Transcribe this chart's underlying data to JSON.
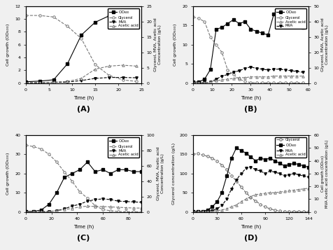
{
  "A": {
    "title": "(A)",
    "time": [
      0,
      3,
      6,
      9,
      12,
      15,
      18,
      21,
      24
    ],
    "OD": [
      0.2,
      0.3,
      0.5,
      3.0,
      7.5,
      9.5,
      10.5,
      10.2,
      9.5
    ],
    "Glycerol": [
      22,
      22,
      21.5,
      18.5,
      14.5,
      6.0,
      2.5,
      1.0,
      0.5
    ],
    "MVA": [
      0.1,
      0.1,
      0.2,
      0.3,
      0.8,
      1.5,
      1.8,
      1.8,
      1.7
    ],
    "AceticAcid": [
      0.1,
      0.2,
      0.3,
      0.5,
      1.5,
      4.5,
      5.5,
      5.8,
      5.5
    ],
    "xlim": [
      0,
      25
    ],
    "ylim_left": [
      0,
      12
    ],
    "ylim_right": [
      0,
      25
    ],
    "xticks": [
      0,
      5,
      10,
      15,
      20,
      25
    ],
    "yticks_left": [
      0,
      2,
      4,
      6,
      8,
      10,
      12
    ],
    "yticks_right": [
      0,
      5,
      10,
      15,
      20,
      25
    ]
  },
  "B": {
    "title": "(B)",
    "time": [
      0,
      3,
      6,
      9,
      12,
      15,
      18,
      21,
      24,
      27,
      30,
      33,
      36,
      39,
      42,
      45,
      48,
      51,
      54,
      57
    ],
    "OD": [
      0.2,
      0.3,
      1.0,
      3.5,
      14.0,
      14.5,
      15.5,
      16.5,
      15.5,
      16.0,
      14.0,
      13.5,
      13.0,
      12.5,
      18.0,
      18.5,
      16.0,
      15.5,
      15.0,
      14.5
    ],
    "Glycerol": [
      43,
      42,
      40,
      30,
      25,
      20,
      8.5,
      5.5,
      2.5,
      1.0,
      0.3,
      0.2,
      0.1,
      0.1,
      0.1,
      0.1,
      0.1,
      0.1,
      0.1,
      0.1
    ],
    "MVA": [
      0.1,
      0.2,
      0.3,
      0.5,
      2.5,
      4.5,
      5.5,
      7.0,
      8.0,
      9.5,
      10.5,
      9.5,
      9.0,
      8.5,
      9.0,
      9.0,
      8.5,
      8.0,
      7.5,
      7.0
    ],
    "AceticAcid": [
      0.1,
      0.2,
      0.3,
      0.5,
      1.5,
      2.0,
      2.5,
      3.0,
      3.5,
      3.5,
      4.0,
      4.0,
      4.0,
      4.0,
      4.5,
      4.5,
      4.5,
      4.5,
      4.5,
      4.5
    ],
    "xlim": [
      0,
      60
    ],
    "ylim_left": [
      0,
      20
    ],
    "ylim_right": [
      0,
      50
    ],
    "xticks": [
      0,
      10,
      20,
      30,
      40,
      50,
      60
    ],
    "yticks_left": [
      0,
      5,
      10,
      15,
      20
    ],
    "yticks_right": [
      0,
      10,
      20,
      30,
      40,
      50
    ]
  },
  "C": {
    "title": "(C)",
    "time": [
      0,
      6,
      12,
      18,
      24,
      30,
      36,
      42,
      48,
      54,
      60,
      66,
      72,
      78,
      84,
      90
    ],
    "OD": [
      0.2,
      0.3,
      1.0,
      4.0,
      10.0,
      18.0,
      20.0,
      22.0,
      26.0,
      21.0,
      22.0,
      20.0,
      22.0,
      22.0,
      21.0,
      21.0
    ],
    "Glycerol": [
      87,
      85,
      82,
      75,
      65,
      52,
      40,
      26,
      18,
      8.0,
      3.0,
      1.5,
      0.5,
      0.2,
      0.1,
      0.1
    ],
    "MVA": [
      0.1,
      0.1,
      0.2,
      0.5,
      1.5,
      4.0,
      7.5,
      10.0,
      14.0,
      16.0,
      17.0,
      16.0,
      14.0,
      13.5,
      13.0,
      12.5
    ],
    "AceticAcid": [
      0.1,
      0.2,
      0.3,
      0.5,
      1.5,
      3.0,
      4.5,
      6.5,
      7.5,
      7.0,
      7.0,
      6.5,
      6.0,
      5.5,
      5.0,
      5.0
    ],
    "xlim": [
      0,
      90
    ],
    "ylim_left": [
      0,
      40
    ],
    "ylim_right": [
      0,
      100
    ],
    "xticks": [
      0,
      20,
      40,
      60,
      80
    ],
    "yticks_left": [
      0,
      10,
      20,
      30,
      40
    ],
    "yticks_right": [
      0,
      20,
      40,
      60,
      80,
      100
    ]
  },
  "D": {
    "title": "(D)",
    "time": [
      0,
      6,
      12,
      18,
      24,
      30,
      36,
      42,
      48,
      54,
      60,
      66,
      72,
      78,
      84,
      90,
      96,
      102,
      108,
      114,
      120,
      126,
      132,
      138,
      144
    ],
    "Glycerol": [
      150,
      152,
      148,
      145,
      140,
      132,
      122,
      110,
      95,
      80,
      65,
      50,
      38,
      28,
      20,
      13,
      8,
      4.5,
      2.5,
      1.5,
      1.0,
      0.8,
      0.6,
      0.5,
      0.4
    ],
    "OD": [
      0.2,
      0.3,
      0.5,
      1.5,
      4.0,
      8.0,
      15.0,
      28.0,
      42.0,
      50.0,
      48.0,
      46.0,
      43.0,
      40.0,
      42.0,
      41.0,
      42.0,
      40.0,
      38.0,
      36.0,
      37.0,
      38.0,
      37.0,
      36.0,
      35.0
    ],
    "MVA": [
      0.1,
      0.1,
      0.2,
      0.5,
      1.0,
      2.5,
      5.0,
      10.0,
      18.0,
      25.0,
      30.0,
      34.0,
      35.0,
      33.0,
      32.0,
      30.0,
      32.0,
      31.0,
      30.0,
      28.0,
      29.0,
      30.0,
      29.0,
      28.0,
      27.0
    ],
    "AceticAcid": [
      0.1,
      0.1,
      0.2,
      0.3,
      0.5,
      1.0,
      1.5,
      2.5,
      4.0,
      5.5,
      8.0,
      10.0,
      12.0,
      13.5,
      14.0,
      14.5,
      15.0,
      15.0,
      15.5,
      16.0,
      16.5,
      17.0,
      17.5,
      18.0,
      18.5
    ],
    "xlim": [
      0,
      144
    ],
    "ylim_left": [
      0,
      200
    ],
    "ylim_right": [
      0,
      60
    ],
    "xticks": [
      0,
      30,
      60,
      90,
      120,
      144
    ],
    "yticks_left": [
      0,
      50,
      100,
      150,
      200
    ],
    "yticks_right": [
      0,
      10,
      20,
      30,
      40,
      50,
      60
    ]
  },
  "common": {
    "xlabel": "Time (h)",
    "ylabel_left_ABC": "Cell growth (OD₆₀₀)",
    "ylabel_right_ABC": "Glycerol, MVA, Acetic acid\nConcentration (g/L)",
    "ylabel_left_D": "Glycerol concentration (g/L)",
    "ylabel_right_D": "Cell growth (OD₆₀₀)\nMVA Acetic acid concentration (g/L)"
  }
}
